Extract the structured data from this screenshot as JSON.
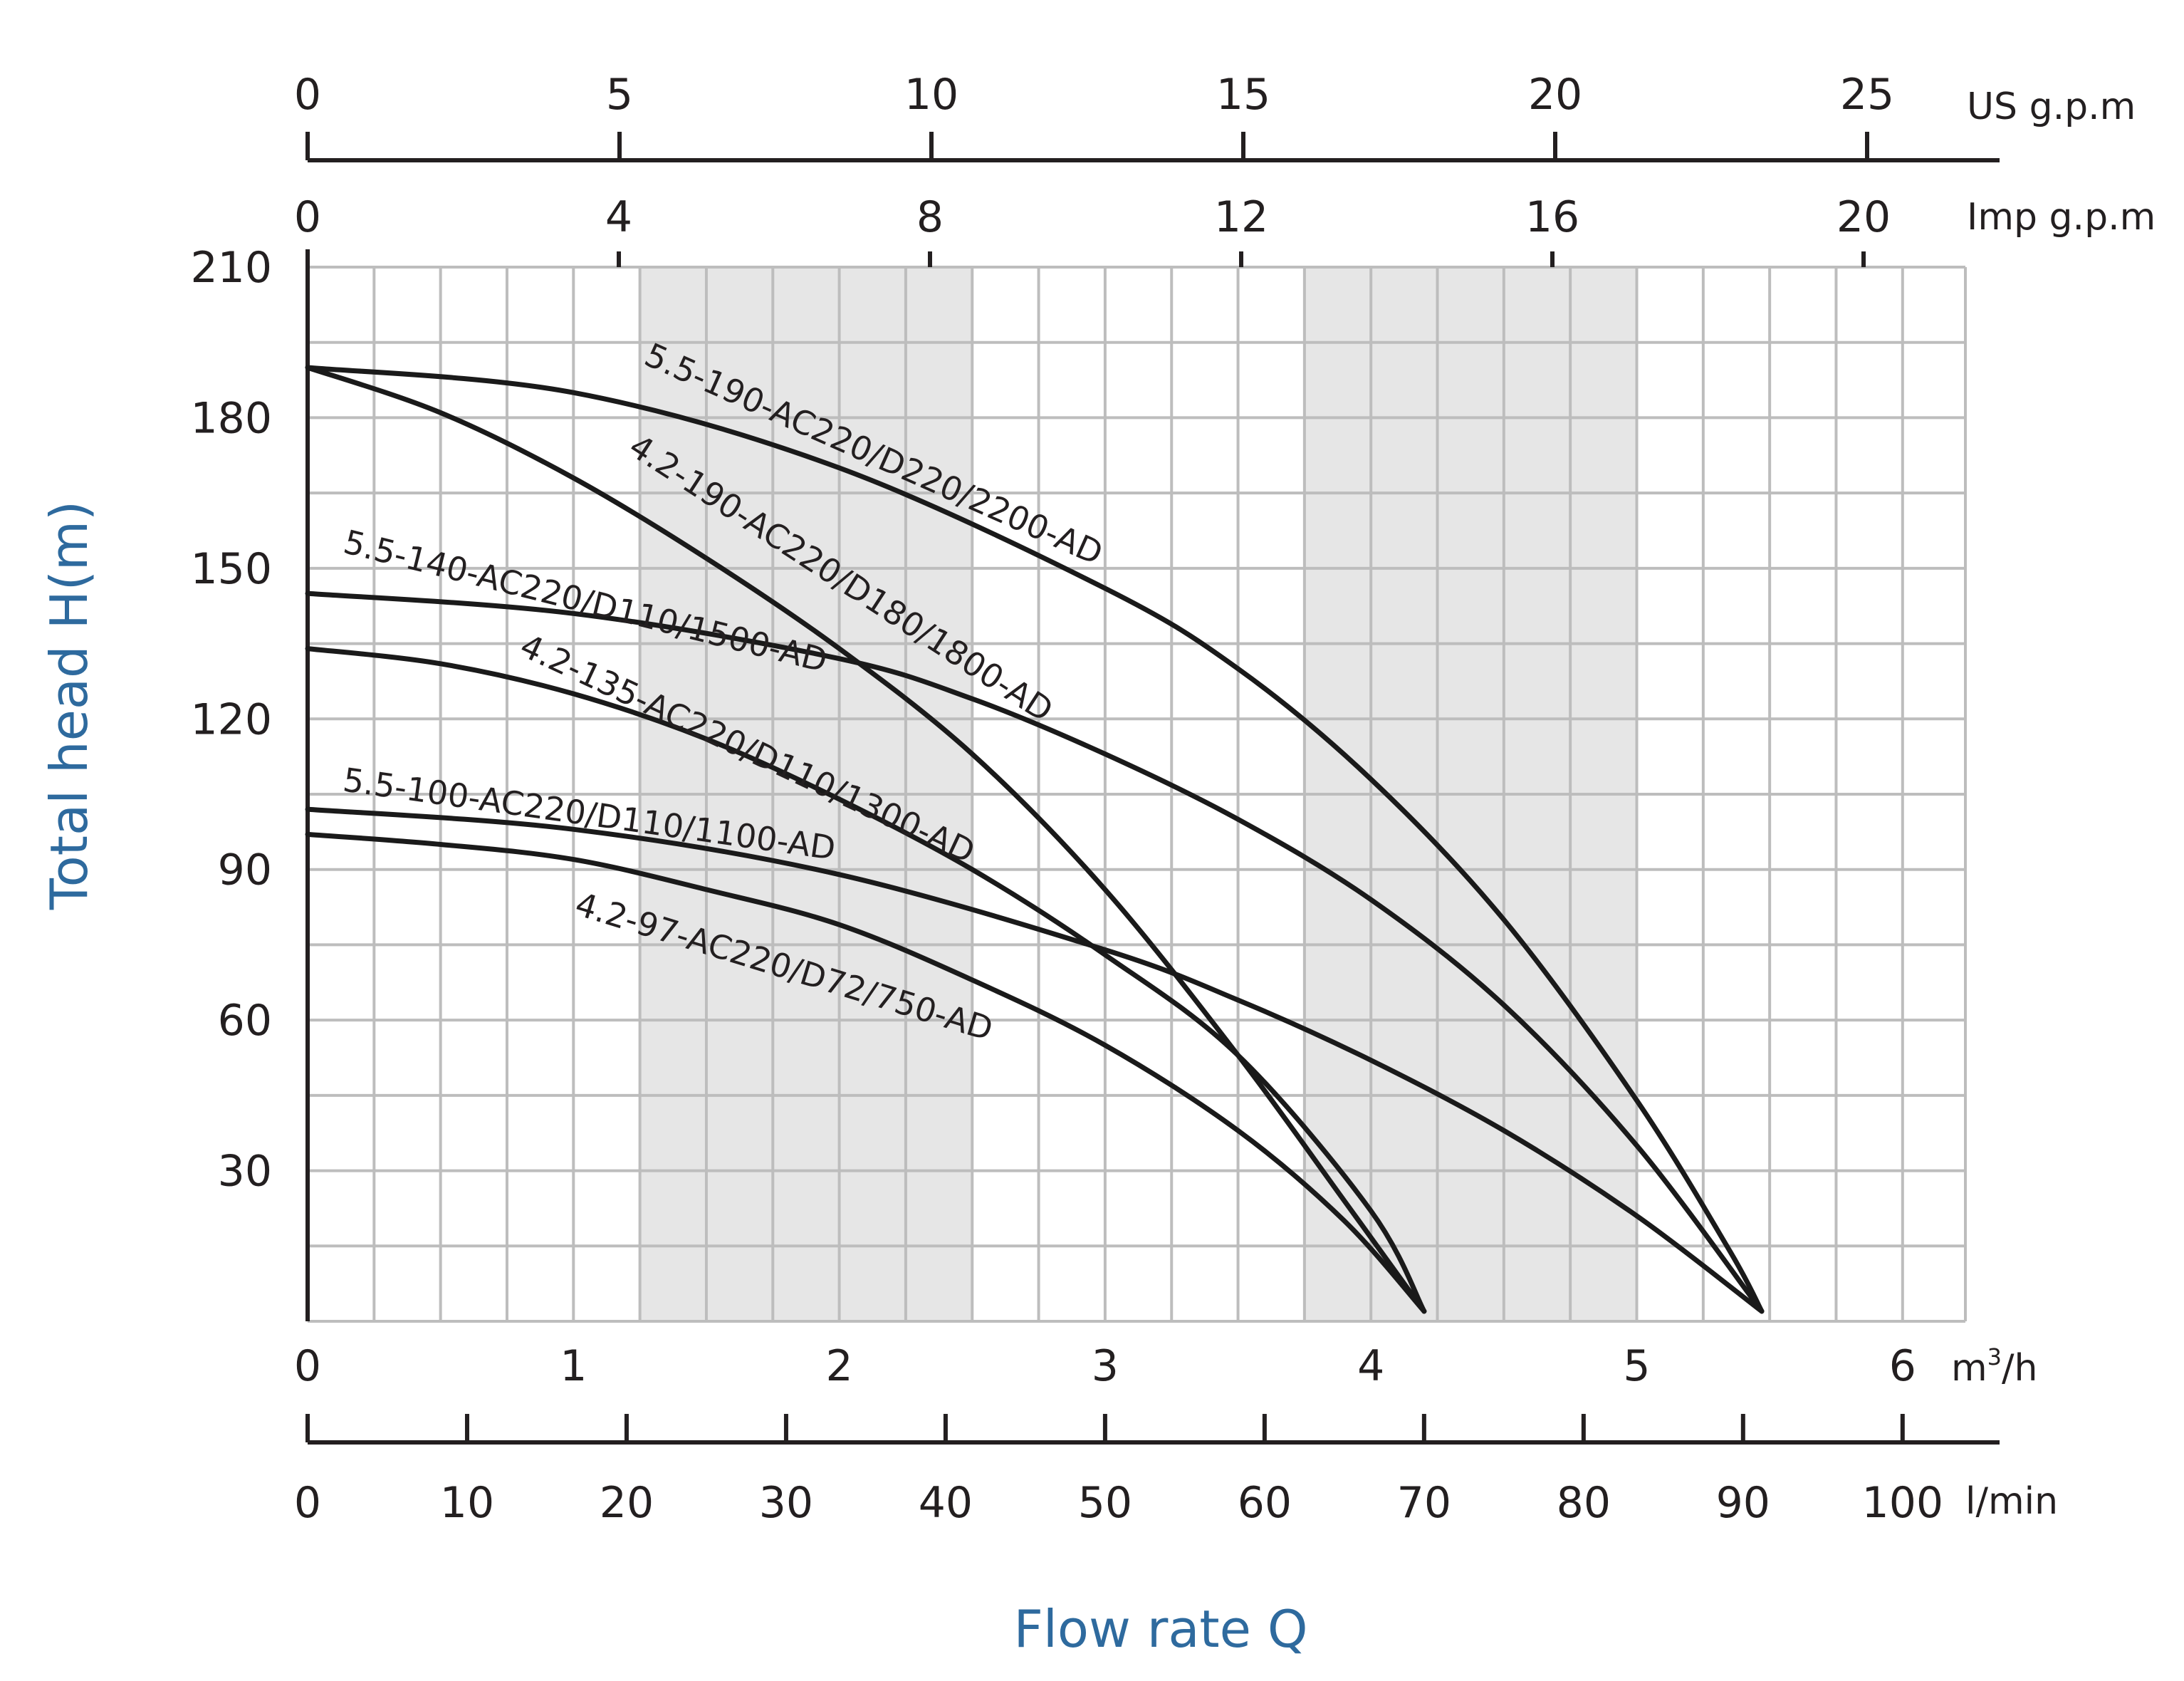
{
  "chart_data": {
    "type": "line",
    "title": "",
    "ylabel": "Total head H(m)",
    "xlabel": "Flow rate Q",
    "xlim": [
      0,
      6.25
    ],
    "ylim": [
      0,
      210
    ],
    "grid": true,
    "shaded_ranges_m3h": [
      [
        1.25,
        2.5
      ],
      [
        3.75,
        5.0
      ]
    ],
    "axes": {
      "m3h": {
        "unit_base": "m",
        "unit_sup": "3",
        "unit_tail": "/h",
        "ticks": [
          0,
          1,
          2,
          3,
          4,
          5,
          6
        ],
        "labels": [
          "0",
          "1",
          "2",
          "3",
          "4",
          "5",
          "6"
        ]
      },
      "lmin": {
        "unit": "l/min",
        "ticks": [
          0,
          10,
          20,
          30,
          40,
          50,
          60,
          70,
          80,
          90,
          100
        ],
        "labels": [
          "0",
          "10",
          "20",
          "30",
          "40",
          "50",
          "60",
          "70",
          "80",
          "90",
          "100"
        ]
      },
      "imp_gpm": {
        "unit": "Imp g.p.m",
        "ticks": [
          0,
          4,
          8,
          12,
          16,
          20
        ],
        "labels": [
          "0",
          "4",
          "8",
          "12",
          "16",
          "20"
        ]
      },
      "us_gpm": {
        "unit": "US g.p.m",
        "ticks": [
          0,
          5,
          10,
          15,
          20,
          25
        ],
        "labels": [
          "0",
          "5",
          "10",
          "15",
          "20",
          "25"
        ]
      },
      "head": {
        "ticks": [
          30,
          60,
          90,
          120,
          150,
          180,
          210
        ],
        "labels": [
          "30",
          "60",
          "90",
          "120",
          "150",
          "180",
          "210"
        ]
      }
    },
    "series": [
      {
        "name": "5.5-190-AC220/D220/2200-AD",
        "x": [
          0,
          1,
          2,
          3,
          3.5,
          4,
          4.5,
          5,
          5.35,
          5.47
        ],
        "y": [
          190,
          185,
          170,
          146,
          130,
          108,
          80,
          44,
          14,
          2
        ]
      },
      {
        "name": "4.2-190-AC220/D180/1800-AD",
        "x": [
          0,
          0.5,
          1,
          1.5,
          2,
          2.5,
          3,
          3.5,
          3.9,
          4.2
        ],
        "y": [
          190,
          181,
          168,
          152,
          134,
          113,
          86,
          53,
          24,
          2
        ]
      },
      {
        "name": "5.5-140-AC220/D110/1500-AD",
        "x": [
          0,
          1,
          2,
          2.5,
          3,
          3.5,
          4,
          4.5,
          5,
          5.47
        ],
        "y": [
          145,
          141,
          132,
          124,
          113,
          100,
          84,
          63,
          35,
          2
        ]
      },
      {
        "name": "4.2-135-AC220/D110/1300-AD",
        "x": [
          0,
          0.5,
          1,
          1.5,
          2,
          2.5,
          3,
          3.5,
          4,
          4.2
        ],
        "y": [
          134,
          131,
          125,
          116,
          104,
          90,
          73,
          53,
          22,
          2
        ]
      },
      {
        "name": "5.5-100-AC220/D110/1100-AD",
        "x": [
          0,
          1,
          2,
          3,
          3.5,
          4,
          4.5,
          5,
          5.47
        ],
        "y": [
          102,
          98,
          89,
          74,
          64,
          52,
          38,
          21,
          2
        ]
      },
      {
        "name": "4.2-97-AC220/D72/750-AD",
        "x": [
          0,
          0.5,
          1,
          1.5,
          2,
          2.5,
          3,
          3.5,
          3.9,
          4.2
        ],
        "y": [
          97,
          95,
          92,
          86,
          79,
          68,
          55,
          38,
          20,
          2
        ]
      }
    ],
    "labels": [
      {
        "series": 0,
        "text": "5.5-190-AC220/D220/2200-AD"
      },
      {
        "series": 1,
        "text": "4.2-190-AC220/D180/1800-AD"
      },
      {
        "series": 2,
        "text": "5.5-140-AC220/D110/1500-AD"
      },
      {
        "series": 3,
        "text": "4.2-135-AC220/D110/1300-AD"
      },
      {
        "series": 4,
        "text": "5.5-100-AC220/D110/1100-AD"
      },
      {
        "series": 5,
        "text": "4.2-97-AC220/D72/750-AD"
      }
    ]
  }
}
